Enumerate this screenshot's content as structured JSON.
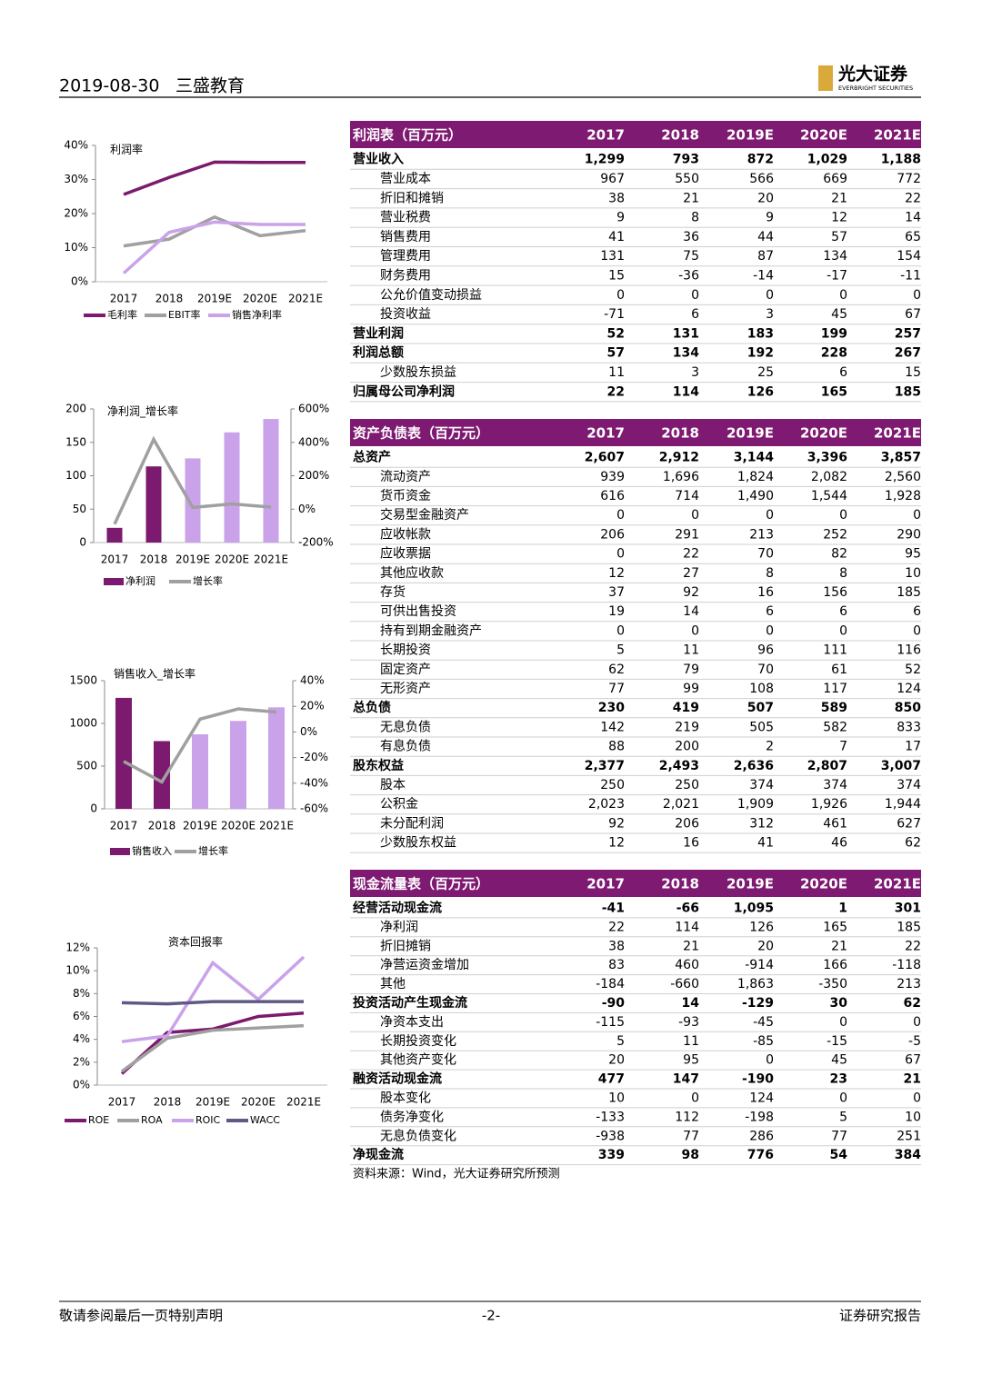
{
  "header": {
    "date": "2019-08-30",
    "company": "三盛教育",
    "logo": "光大证券",
    "logo_en": "EVERBRIGHT SECURITIES"
  },
  "chart_data": [
    {
      "type": "line",
      "title": "利润率",
      "categories": [
        "2017",
        "2018",
        "2019E",
        "2020E",
        "2021E"
      ],
      "ylim": [
        0,
        40
      ],
      "yticks": [
        {
          "value": 0,
          "label": "0%"
        },
        {
          "value": 10,
          "label": "10%"
        },
        {
          "value": 20,
          "label": "20%"
        },
        {
          "value": 30,
          "label": "30%"
        },
        {
          "value": 40,
          "label": "40%"
        }
      ],
      "series": [
        {
          "name": "毛利率",
          "color": "#7b1a6e",
          "values": [
            25.6,
            30.6,
            35.1,
            35.0,
            35.0
          ]
        },
        {
          "name": "EBIT率",
          "color": "#a0a0a0",
          "values": [
            10.5,
            12.5,
            19,
            13.5,
            15
          ]
        },
        {
          "name": "销售净利率",
          "color": "#caa2ea",
          "values": [
            2.5,
            14.5,
            17.5,
            16.8,
            16.8
          ]
        }
      ]
    },
    {
      "type": "combo",
      "title": "净利润_增长率",
      "categories": [
        "2017",
        "2018",
        "2019E",
        "2020E",
        "2021E"
      ],
      "ylim": [
        0,
        200
      ],
      "yticks": [
        0,
        50,
        100,
        150,
        200
      ],
      "y2lim": [
        -200,
        600
      ],
      "y2ticks": [
        {
          "value": -200,
          "label": "-200%"
        },
        {
          "value": 0,
          "label": "0%"
        },
        {
          "value": 200,
          "label": "200%"
        },
        {
          "value": 400,
          "label": "400%"
        },
        {
          "value": 600,
          "label": "600%"
        }
      ],
      "series": [
        {
          "name": "净利润",
          "kind": "bar",
          "color": "#7b1a6e",
          "colors": [
            "#7b1a6e",
            "#7b1a6e",
            "#caa2ea",
            "#caa2ea",
            "#caa2ea"
          ],
          "values": [
            22,
            114,
            126,
            165,
            185
          ]
        },
        {
          "name": "增长率",
          "kind": "line",
          "axis": "y2",
          "color": "#a0a0a0",
          "values": [
            -90,
            418,
            10,
            31,
            12
          ]
        }
      ]
    },
    {
      "type": "combo",
      "title": "销售收入_增长率",
      "categories": [
        "2017",
        "2018",
        "2019E",
        "2020E",
        "2021E"
      ],
      "ylim": [
        0,
        1500
      ],
      "yticks": [
        0,
        500,
        1000,
        1500
      ],
      "y2lim": [
        -60,
        40
      ],
      "y2ticks": [
        {
          "value": -60,
          "label": "-60%"
        },
        {
          "value": -40,
          "label": "-40%"
        },
        {
          "value": -20,
          "label": "-20%"
        },
        {
          "value": 0,
          "label": "0%"
        },
        {
          "value": 20,
          "label": "20%"
        },
        {
          "value": 40,
          "label": "40%"
        }
      ],
      "series": [
        {
          "name": "销售收入",
          "kind": "bar",
          "color": "#7b1a6e",
          "colors": [
            "#7b1a6e",
            "#7b1a6e",
            "#caa2ea",
            "#caa2ea",
            "#caa2ea"
          ],
          "values": [
            1299,
            793,
            872,
            1029,
            1188
          ]
        },
        {
          "name": "增长率",
          "kind": "line",
          "axis": "y2",
          "color": "#a0a0a0",
          "values": [
            -23,
            -39,
            10,
            18,
            15.5
          ]
        }
      ]
    },
    {
      "type": "line",
      "title": "资本回报率",
      "categories": [
        "2017",
        "2018",
        "2019E",
        "2020E",
        "2021E"
      ],
      "ylim": [
        0,
        12
      ],
      "yticks": [
        {
          "value": 0,
          "label": "0%"
        },
        {
          "value": 2,
          "label": "2%"
        },
        {
          "value": 4,
          "label": "4%"
        },
        {
          "value": 6,
          "label": "6%"
        },
        {
          "value": 8,
          "label": "8%"
        },
        {
          "value": 10,
          "label": "10%"
        },
        {
          "value": 12,
          "label": "12%"
        }
      ],
      "series": [
        {
          "name": "ROE",
          "color": "#7b1a6e",
          "values": [
            1,
            4.6,
            4.9,
            6.0,
            6.3
          ]
        },
        {
          "name": "ROA",
          "color": "#a0a0a0",
          "values": [
            1.2,
            4.1,
            4.8,
            5.0,
            5.2
          ]
        },
        {
          "name": "ROIC",
          "color": "#caa2ea",
          "values": [
            3.8,
            4.3,
            10.7,
            7.5,
            11.2
          ]
        },
        {
          "name": "WACC",
          "color": "#5f5a85",
          "values": [
            7.2,
            7.1,
            7.3,
            7.3,
            7.3
          ]
        }
      ]
    }
  ],
  "tables": [
    {
      "columns": [
        "利润表（百万元）",
        "2017",
        "2018",
        "2019E",
        "2020E",
        "2021E"
      ],
      "rows": [
        {
          "label": "营业收入",
          "bold": true,
          "values": [
            "1,299",
            "793",
            "872",
            "1,029",
            "1,188"
          ]
        },
        {
          "label": "营业成本",
          "bold": false,
          "values": [
            "967",
            "550",
            "566",
            "669",
            "772"
          ]
        },
        {
          "label": "折旧和摊销",
          "bold": false,
          "values": [
            "38",
            "21",
            "20",
            "21",
            "22"
          ]
        },
        {
          "label": "营业税费",
          "bold": false,
          "values": [
            "9",
            "8",
            "9",
            "12",
            "14"
          ]
        },
        {
          "label": "销售费用",
          "bold": false,
          "values": [
            "41",
            "36",
            "44",
            "57",
            "65"
          ]
        },
        {
          "label": "管理费用",
          "bold": false,
          "values": [
            "131",
            "75",
            "87",
            "134",
            "154"
          ]
        },
        {
          "label": "财务费用",
          "bold": false,
          "values": [
            "15",
            "-36",
            "-14",
            "-17",
            "-11"
          ]
        },
        {
          "label": "公允价值变动损益",
          "bold": false,
          "values": [
            "0",
            "0",
            "0",
            "0",
            "0"
          ]
        },
        {
          "label": "投资收益",
          "bold": false,
          "values": [
            "-71",
            "6",
            "3",
            "45",
            "67"
          ]
        },
        {
          "label": "营业利润",
          "bold": true,
          "values": [
            "52",
            "131",
            "183",
            "199",
            "257"
          ]
        },
        {
          "label": "利润总额",
          "bold": true,
          "values": [
            "57",
            "134",
            "192",
            "228",
            "267"
          ]
        },
        {
          "label": "少数股东损益",
          "bold": false,
          "values": [
            "11",
            "3",
            "25",
            "6",
            "15"
          ]
        },
        {
          "label": "归属母公司净利润",
          "bold": true,
          "values": [
            "22",
            "114",
            "126",
            "165",
            "185"
          ]
        }
      ]
    },
    {
      "columns": [
        "资产负债表（百万元）",
        "2017",
        "2018",
        "2019E",
        "2020E",
        "2021E"
      ],
      "rows": [
        {
          "label": "总资产",
          "bold": true,
          "values": [
            "2,607",
            "2,912",
            "3,144",
            "3,396",
            "3,857"
          ]
        },
        {
          "label": "流动资产",
          "bold": false,
          "values": [
            "939",
            "1,696",
            "1,824",
            "2,082",
            "2,560"
          ]
        },
        {
          "label": "货币资金",
          "bold": false,
          "values": [
            "616",
            "714",
            "1,490",
            "1,544",
            "1,928"
          ]
        },
        {
          "label": "交易型金融资产",
          "bold": false,
          "values": [
            "0",
            "0",
            "0",
            "0",
            "0"
          ]
        },
        {
          "label": "应收帐款",
          "bold": false,
          "values": [
            "206",
            "291",
            "213",
            "252",
            "290"
          ]
        },
        {
          "label": "应收票据",
          "bold": false,
          "values": [
            "0",
            "22",
            "70",
            "82",
            "95"
          ]
        },
        {
          "label": "其他应收款",
          "bold": false,
          "values": [
            "12",
            "27",
            "8",
            "8",
            "10"
          ]
        },
        {
          "label": "存货",
          "bold": false,
          "values": [
            "37",
            "92",
            "16",
            "156",
            "185"
          ]
        },
        {
          "label": "可供出售投资",
          "bold": false,
          "values": [
            "19",
            "14",
            "6",
            "6",
            "6"
          ]
        },
        {
          "label": "持有到期金融资产",
          "bold": false,
          "values": [
            "0",
            "0",
            "0",
            "0",
            "0"
          ]
        },
        {
          "label": "长期投资",
          "bold": false,
          "values": [
            "5",
            "11",
            "96",
            "111",
            "116"
          ]
        },
        {
          "label": "固定资产",
          "bold": false,
          "values": [
            "62",
            "79",
            "70",
            "61",
            "52"
          ]
        },
        {
          "label": "无形资产",
          "bold": false,
          "values": [
            "77",
            "99",
            "108",
            "117",
            "124"
          ]
        },
        {
          "label": "总负债",
          "bold": true,
          "values": [
            "230",
            "419",
            "507",
            "589",
            "850"
          ]
        },
        {
          "label": "无息负债",
          "bold": false,
          "values": [
            "142",
            "219",
            "505",
            "582",
            "833"
          ]
        },
        {
          "label": "有息负债",
          "bold": false,
          "values": [
            "88",
            "200",
            "2",
            "7",
            "17"
          ]
        },
        {
          "label": "股东权益",
          "bold": true,
          "values": [
            "2,377",
            "2,493",
            "2,636",
            "2,807",
            "3,007"
          ]
        },
        {
          "label": "股本",
          "bold": false,
          "values": [
            "250",
            "250",
            "374",
            "374",
            "374"
          ]
        },
        {
          "label": "公积金",
          "bold": false,
          "values": [
            "2,023",
            "2,021",
            "1,909",
            "1,926",
            "1,944"
          ]
        },
        {
          "label": "未分配利润",
          "bold": false,
          "values": [
            "92",
            "206",
            "312",
            "461",
            "627"
          ]
        },
        {
          "label": "少数股东权益",
          "bold": false,
          "values": [
            "12",
            "16",
            "41",
            "46",
            "62"
          ]
        }
      ]
    },
    {
      "columns": [
        "现金流量表（百万元）",
        "2017",
        "2018",
        "2019E",
        "2020E",
        "2021E"
      ],
      "rows": [
        {
          "label": "经营活动现金流",
          "bold": true,
          "values": [
            "-41",
            "-66",
            "1,095",
            "1",
            "301"
          ]
        },
        {
          "label": "净利润",
          "bold": false,
          "values": [
            "22",
            "114",
            "126",
            "165",
            "185"
          ]
        },
        {
          "label": "折旧摊销",
          "bold": false,
          "values": [
            "38",
            "21",
            "20",
            "21",
            "22"
          ]
        },
        {
          "label": "净营运资金增加",
          "bold": false,
          "values": [
            "83",
            "460",
            "-914",
            "166",
            "-118"
          ]
        },
        {
          "label": "其他",
          "bold": false,
          "values": [
            "-184",
            "-660",
            "1,863",
            "-350",
            "213"
          ]
        },
        {
          "label": "投资活动产生现金流",
          "bold": true,
          "values": [
            "-90",
            "14",
            "-129",
            "30",
            "62"
          ]
        },
        {
          "label": "净资本支出",
          "bold": false,
          "values": [
            "-115",
            "-93",
            "-45",
            "0",
            "0"
          ]
        },
        {
          "label": "长期投资变化",
          "bold": false,
          "values": [
            "5",
            "11",
            "-85",
            "-15",
            "-5"
          ]
        },
        {
          "label": "其他资产变化",
          "bold": false,
          "values": [
            "20",
            "95",
            "0",
            "45",
            "67"
          ]
        },
        {
          "label": "融资活动现金流",
          "bold": true,
          "values": [
            "477",
            "147",
            "-190",
            "23",
            "21"
          ]
        },
        {
          "label": "股本变化",
          "bold": false,
          "values": [
            "10",
            "0",
            "124",
            "0",
            "0"
          ]
        },
        {
          "label": "债务净变化",
          "bold": false,
          "values": [
            "-133",
            "112",
            "-198",
            "5",
            "10"
          ]
        },
        {
          "label": "无息负债变化",
          "bold": false,
          "values": [
            "-938",
            "77",
            "286",
            "77",
            "251"
          ]
        },
        {
          "label": "净现金流",
          "bold": true,
          "values": [
            "339",
            "98",
            "776",
            "54",
            "384"
          ]
        }
      ]
    }
  ],
  "source": "资料来源：Wind，光大证券研究所预测",
  "footer": {
    "left": "敬请参阅最后一页特别声明",
    "page": "-2-",
    "right": "证券研究报告"
  }
}
